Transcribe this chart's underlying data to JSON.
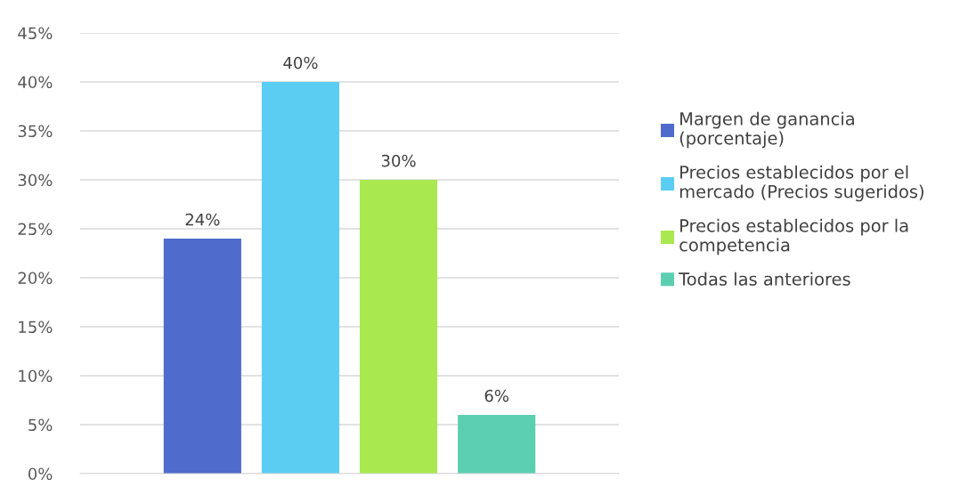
{
  "chart_data": {
    "type": "bar",
    "categories": [
      null
    ],
    "series": [
      {
        "name": "Margen de ganancia (porcentaje)",
        "color": "#4f6bcc",
        "values": [
          24
        ],
        "value_labels": [
          "24%"
        ]
      },
      {
        "name": "Precios establecidos por el mercado (Precios sugeridos)",
        "color": "#5bcdf2",
        "values": [
          40
        ],
        "value_labels": [
          "40%"
        ]
      },
      {
        "name": "Precios establecidos por la competencia",
        "color": "#a9e84f",
        "values": [
          30
        ],
        "value_labels": [
          "30%"
        ]
      },
      {
        "name": "Todas las anteriores",
        "color": "#5ccfb0",
        "values": [
          6
        ],
        "value_labels": [
          "6%"
        ]
      }
    ],
    "ylim": [
      0,
      45
    ],
    "yticks": [
      {
        "value": 0,
        "label": "0%"
      },
      {
        "value": 5,
        "label": "5%"
      },
      {
        "value": 10,
        "label": "10%"
      },
      {
        "value": 15,
        "label": "15%"
      },
      {
        "value": 20,
        "label": "20%"
      },
      {
        "value": 25,
        "label": "25%"
      },
      {
        "value": 30,
        "label": "30%"
      },
      {
        "value": 35,
        "label": "35%"
      },
      {
        "value": 40,
        "label": "40%"
      },
      {
        "value": 45,
        "label": "45%"
      }
    ],
    "grid": "y",
    "legend": "right"
  }
}
